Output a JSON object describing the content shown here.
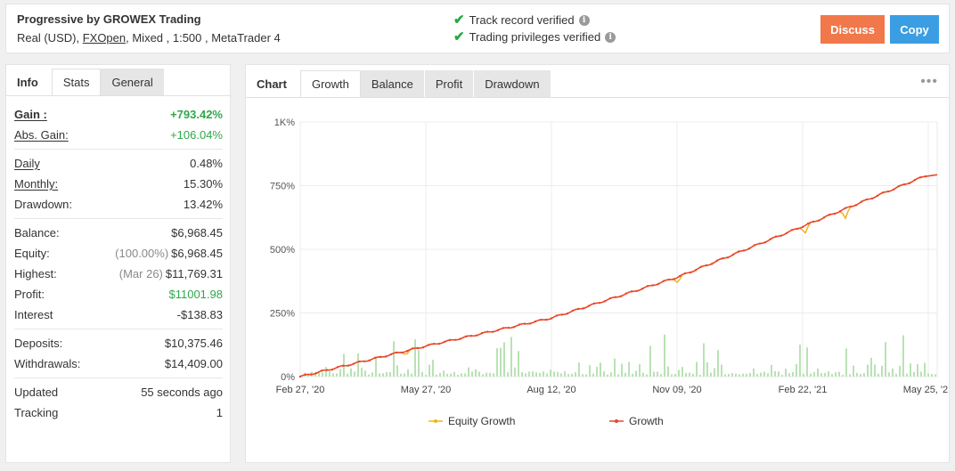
{
  "header": {
    "title": "Progressive by GROWEX Trading",
    "account_type": "Real (USD),",
    "broker": "FXOpen",
    "account_details": ", Mixed , 1:500 , MetaTrader 4",
    "verify_track": "Track record verified",
    "verify_privileges": "Trading privileges verified",
    "discuss_label": "Discuss",
    "copy_label": "Copy"
  },
  "left_tabs": [
    "Info",
    "Stats",
    "General"
  ],
  "stats": {
    "gain_label": "Gain :",
    "gain": "+793.42%",
    "abs_gain_label": "Abs. Gain:",
    "abs_gain": "+106.04%",
    "daily_label": "Daily",
    "daily": "0.48%",
    "monthly_label": "Monthly:",
    "monthly": "15.30%",
    "drawdown_label": "Drawdown:",
    "drawdown": "13.42%",
    "balance_label": "Balance:",
    "balance": "$6,968.45",
    "equity_label": "Equity:",
    "equity_pct": "(100.00%)",
    "equity": "$6,968.45",
    "highest_label": "Highest:",
    "highest_date": "(Mar 26)",
    "highest": "$11,769.31",
    "profit_label": "Profit:",
    "profit": "$11001.98",
    "interest_label": "Interest",
    "interest": "-$138.83",
    "deposits_label": "Deposits:",
    "deposits": "$10,375.46",
    "withdrawals_label": "Withdrawals:",
    "withdrawals": "$14,409.00",
    "updated_label": "Updated",
    "updated": "55 seconds ago",
    "tracking_label": "Tracking",
    "tracking": "1"
  },
  "chart_tabs": [
    "Chart",
    "Growth",
    "Balance",
    "Profit",
    "Drawdown"
  ],
  "colors": {
    "growth": "#e8452c",
    "equity": "#f2b21b",
    "volume": "#b9e2b4",
    "green": "#2ea84a"
  },
  "chart_data": {
    "type": "line",
    "x_ticks": [
      "Feb 27, '20",
      "May 27, '20",
      "Aug 12, '20",
      "Nov 09, '20",
      "Feb 22, '21",
      "May 25, '21"
    ],
    "y_ticks": [
      "0%",
      "250%",
      "500%",
      "750%",
      "1K%"
    ],
    "ylim": [
      0,
      1000
    ],
    "series": [
      {
        "name": "Growth",
        "x": [
          "Feb 27, '20",
          "May 27, '20",
          "Aug 12, '20",
          "Nov 09, '20",
          "Feb 22, '21",
          "May 25, '21"
        ],
        "values": [
          0,
          120,
          230,
          390,
          590,
          793
        ]
      },
      {
        "name": "Equity Growth",
        "x": [
          "Feb 27, '20",
          "May 27, '20",
          "Aug 12, '20",
          "Nov 09, '20",
          "Feb 22, '21",
          "May 25, '21"
        ],
        "values": [
          0,
          120,
          230,
          390,
          590,
          793
        ]
      }
    ],
    "legend": [
      "Equity Growth",
      "Growth"
    ],
    "legend_position": "bottom",
    "grid": true
  }
}
